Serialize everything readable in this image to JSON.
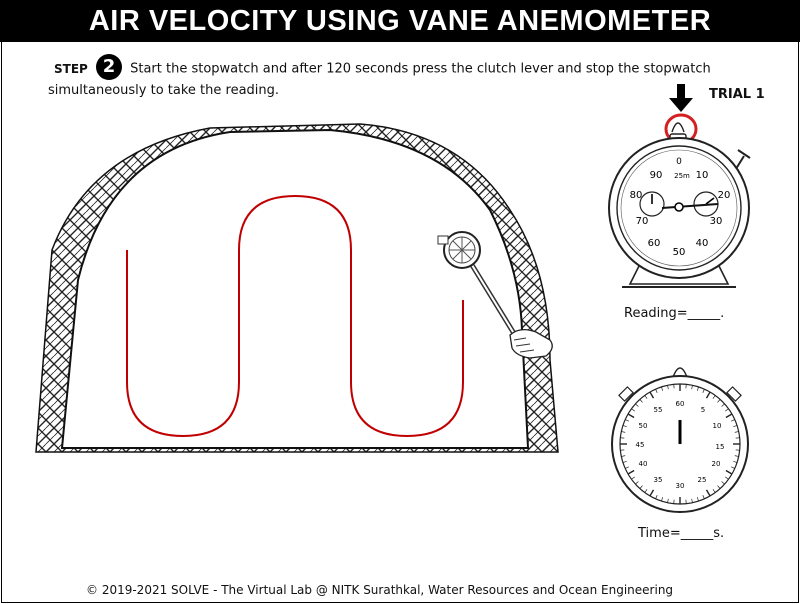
{
  "header": {
    "title": "AIR VELOCITY USING VANE ANEMOMETER"
  },
  "step": {
    "label": "STEP",
    "number": "2",
    "instruction": "Start the stopwatch and after 120 seconds press the clutch lever and stop the stopwatch simultaneously to take the reading."
  },
  "trial": {
    "label": "TRIAL 1"
  },
  "anemometer_dial": {
    "top_label": "0",
    "unit_label": "25m",
    "numbers": [
      "90",
      "10",
      "80",
      "20",
      "70",
      "30",
      "60",
      "40",
      "50"
    ]
  },
  "reading": {
    "text": "Reading=_____."
  },
  "stopwatch_dial": {
    "numbers": [
      "60",
      "5",
      "10",
      "15",
      "20",
      "25",
      "30",
      "35",
      "40",
      "45",
      "50",
      "55"
    ]
  },
  "time": {
    "text": "Time=_____s."
  },
  "footer": {
    "text": "© 2019-2021 SOLVE - The Virtual Lab @ NITK Surathkal, Water Resources and Ocean Engineering"
  },
  "colors": {
    "path_red": "#c00000",
    "pointer_ring": "#d42020"
  },
  "icons": [
    "down-arrow-icon",
    "anemometer-icon",
    "hand-icon",
    "stopwatch-icon"
  ]
}
